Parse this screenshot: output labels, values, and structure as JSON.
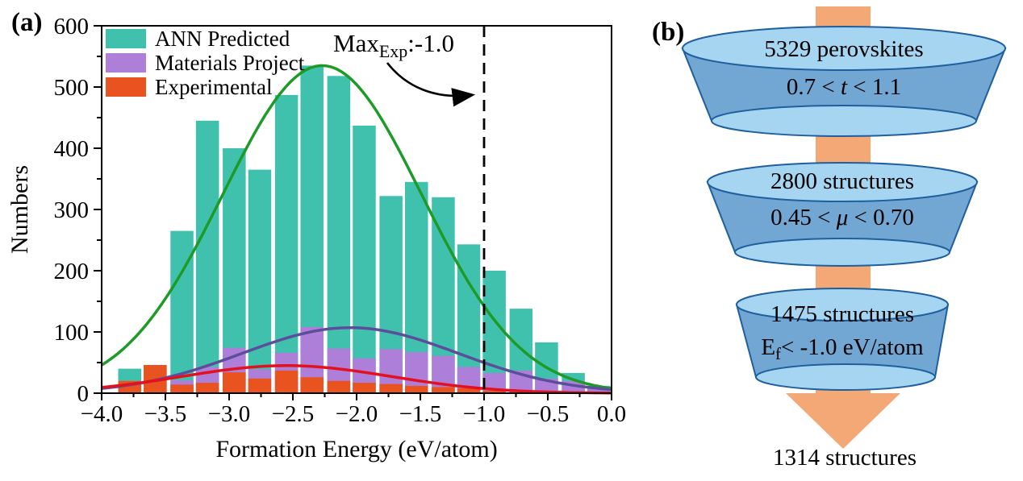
{
  "panel_labels": {
    "a": "(a)",
    "b": "(b)"
  },
  "chart_data": {
    "type": "bar",
    "title": "",
    "xlabel": "Formation Energy (eV/atom)",
    "ylabel": "Numbers",
    "xlim": [
      -4.0,
      0.0
    ],
    "ylim": [
      0,
      600
    ],
    "grid": false,
    "legend_position": "top-left",
    "x_tick_values": [
      -4.0,
      -3.5,
      -3.0,
      -2.5,
      -2.0,
      -1.5,
      -1.0,
      -0.5,
      0.0
    ],
    "x_tick_labels": [
      "−4.0",
      "−3.5",
      "−3.0",
      "−2.5",
      "−2.0",
      "−1.5",
      "−1.0",
      "−0.5",
      "0.0"
    ],
    "y_tick_values": [
      0,
      100,
      200,
      300,
      400,
      500,
      600
    ],
    "y_tick_labels": [
      "0",
      "100",
      "200",
      "300",
      "400",
      "500",
      "600"
    ],
    "bin_width": 0.2,
    "categories": [
      -3.78,
      -3.58,
      -3.37,
      -3.17,
      -2.96,
      -2.76,
      -2.55,
      -2.35,
      -2.14,
      -1.94,
      -1.73,
      -1.53,
      -1.32,
      -1.12,
      -0.92,
      -0.71,
      -0.51,
      -0.3,
      -0.1
    ],
    "series": [
      {
        "name": "ANN Predicted",
        "color": "#3fc1ae",
        "values": [
          40,
          46,
          265,
          445,
          400,
          365,
          487,
          535,
          518,
          437,
          322,
          345,
          320,
          243,
          200,
          138,
          83,
          33,
          12
        ]
      },
      {
        "name": "Materials Project",
        "color": "#ae7fd9",
        "values": [
          0,
          0,
          21,
          43,
          74,
          39,
          66,
          108,
          73,
          57,
          72,
          67,
          61,
          43,
          33,
          37,
          24,
          20,
          8
        ]
      },
      {
        "name": "Experimental",
        "color": "#e9531f",
        "values": [
          20,
          46,
          14,
          17,
          34,
          24,
          37,
          26,
          20,
          17,
          15,
          12,
          10,
          8,
          4,
          2,
          1,
          0,
          0
        ]
      }
    ],
    "curves": [
      {
        "name": "ANN Predicted fit",
        "color": "#1d9a27",
        "amplitude": 535,
        "mean": -2.27,
        "sigma": 0.78
      },
      {
        "name": "Materials Project fit",
        "color": "#5c4e9b",
        "amplitude": 107,
        "mean": -2.05,
        "sigma": 0.85
      },
      {
        "name": "Experimental fit",
        "color": "#e3101f",
        "amplitude": 45,
        "mean": -2.55,
        "sigma": 0.82
      }
    ],
    "vline": {
      "x": -1.0,
      "style": "dashed",
      "color": "#000000"
    },
    "annotation": {
      "main": "Max",
      "sub": "Exp",
      "rest": ":-1.0"
    }
  },
  "funnel": {
    "stages": [
      {
        "count": "5329 perovskites",
        "cond_pre": "0.7 < ",
        "cond_var": "t",
        "cond_post": " < 1.1"
      },
      {
        "count": "2800 structures",
        "cond_pre": "0.45 < ",
        "cond_var": "μ",
        "cond_post": " < 0.70"
      },
      {
        "count": "1475 structures",
        "cond_pre": "E",
        "cond_sub": "f",
        "cond_post": "< -1.0 eV/atom"
      }
    ],
    "result": "1314 structures",
    "colors": {
      "ellipse": "#a5d5f0",
      "side": "#72a7d4",
      "outline": "#1f5f9e",
      "arrow": "#f3a876"
    }
  }
}
